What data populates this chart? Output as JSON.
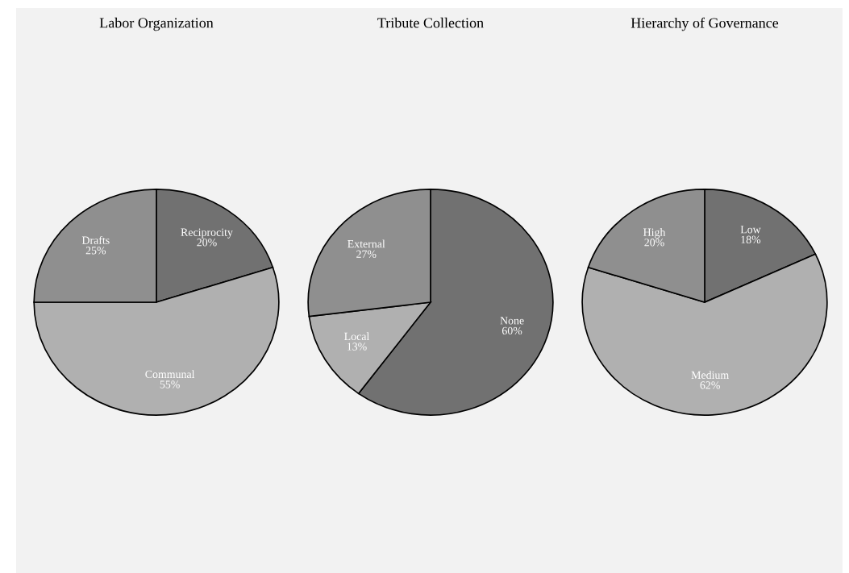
{
  "chart_data": [
    {
      "type": "pie",
      "title": "Labor Organization",
      "categories": [
        "Reciprocity",
        "Communal",
        "Drafts"
      ],
      "values": [
        20,
        55,
        25
      ],
      "colors": [
        "#717171",
        "#b0b0b0",
        "#8f8f8f"
      ],
      "value_labels": [
        "20%",
        "55%",
        "25%"
      ]
    },
    {
      "type": "pie",
      "title": "Tribute Collection",
      "categories": [
        "None",
        "Local",
        "External"
      ],
      "values": [
        60,
        13,
        27
      ],
      "colors": [
        "#717171",
        "#b0b0b0",
        "#8f8f8f"
      ],
      "value_labels": [
        "60%",
        "13%",
        "27%"
      ]
    },
    {
      "type": "pie",
      "title": "Hierarchy of Governance",
      "categories": [
        "Low",
        "Medium",
        "High"
      ],
      "values": [
        18,
        62,
        20
      ],
      "colors": [
        "#717171",
        "#b0b0b0",
        "#8f8f8f"
      ],
      "value_labels": [
        "18%",
        "62%",
        "20%"
      ]
    }
  ]
}
